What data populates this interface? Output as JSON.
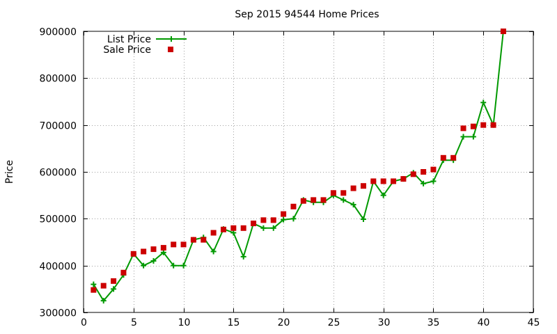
{
  "chart_data": {
    "type": "line",
    "title": "Sep 2015 94544 Home Prices",
    "xlabel": "",
    "ylabel": "Price",
    "xlim": [
      0,
      45
    ],
    "ylim": [
      300000,
      900000
    ],
    "xticks": [
      0,
      5,
      10,
      15,
      20,
      25,
      30,
      35,
      40,
      45
    ],
    "yticks": [
      300000,
      400000,
      500000,
      600000,
      700000,
      800000,
      900000
    ],
    "grid": true,
    "legend_position": "top-left",
    "series": [
      {
        "name": "List Price",
        "style": "line-with-plus-markers",
        "color": "#009900",
        "x": [
          1,
          2,
          3,
          4,
          5,
          6,
          7,
          8,
          9,
          10,
          11,
          12,
          13,
          14,
          15,
          16,
          17,
          18,
          19,
          20,
          21,
          22,
          23,
          24,
          25,
          26,
          27,
          28,
          29,
          30,
          31,
          32,
          33,
          34,
          35,
          36,
          37,
          38,
          39,
          40,
          41,
          42
        ],
        "y": [
          360000,
          325000,
          350000,
          380000,
          425000,
          400000,
          410000,
          428000,
          400000,
          400000,
          455000,
          460000,
          430000,
          478000,
          470000,
          419000,
          490000,
          480000,
          480000,
          498000,
          500000,
          540000,
          535000,
          535000,
          550000,
          540000,
          530000,
          499000,
          580000,
          550000,
          580000,
          585000,
          598000,
          575000,
          580000,
          625000,
          625000,
          675000,
          675000,
          748000,
          700000,
          900000
        ]
      },
      {
        "name": "Sale Price",
        "style": "square-markers",
        "color": "#cc0000",
        "x": [
          1,
          2,
          3,
          4,
          5,
          6,
          7,
          8,
          9,
          10,
          11,
          12,
          13,
          14,
          15,
          16,
          17,
          18,
          19,
          20,
          21,
          22,
          23,
          24,
          25,
          26,
          27,
          28,
          29,
          30,
          31,
          32,
          33,
          34,
          35,
          36,
          37,
          38,
          39,
          40,
          41,
          42
        ],
        "y": [
          348000,
          357000,
          367000,
          385000,
          425000,
          430000,
          435000,
          438000,
          445000,
          445000,
          455000,
          455000,
          470000,
          477000,
          480000,
          480000,
          490000,
          497000,
          497000,
          510000,
          526000,
          538000,
          540000,
          540000,
          555000,
          555000,
          565000,
          570000,
          580000,
          580000,
          580000,
          585000,
          595000,
          600000,
          605000,
          630000,
          630000,
          693000,
          697000,
          700000,
          700000,
          900000
        ]
      }
    ]
  }
}
